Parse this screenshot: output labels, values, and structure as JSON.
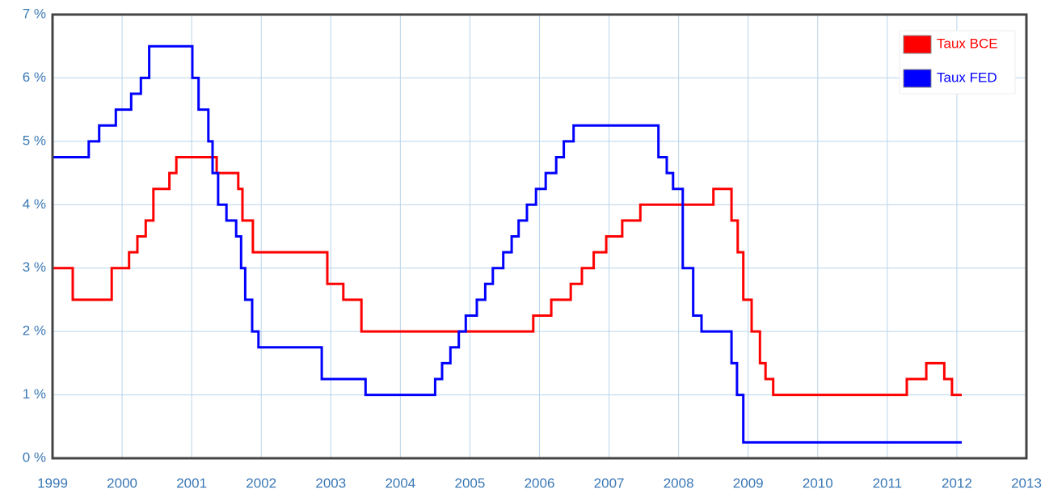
{
  "chart_data": {
    "type": "line",
    "step": true,
    "legend": "top-right",
    "grid": true,
    "xlim": [
      1999,
      2013
    ],
    "xticks": [
      1999,
      2000,
      2001,
      2002,
      2003,
      2004,
      2005,
      2006,
      2007,
      2008,
      2009,
      2010,
      2011,
      2012,
      2013
    ],
    "ylim": [
      0,
      7
    ],
    "yticks": [
      {
        "value": 0,
        "label": "0 %"
      },
      {
        "value": 1,
        "label": "1 %"
      },
      {
        "value": 2,
        "label": "2 %"
      },
      {
        "value": 3,
        "label": "3 %"
      },
      {
        "value": 4,
        "label": "4 %"
      },
      {
        "value": 5,
        "label": "5 %"
      },
      {
        "value": 6,
        "label": "6 %"
      },
      {
        "value": 7,
        "label": "7 %"
      }
    ],
    "series": [
      {
        "name": "Taux BCE",
        "color": "#ff0000",
        "x": [
          1999,
          1999.29,
          1999.29,
          1999.85,
          1999.85,
          2000.1,
          2000.1,
          2000.22,
          2000.22,
          2000.34,
          2000.34,
          2000.45,
          2000.45,
          2000.68,
          2000.68,
          2000.78,
          2000.78,
          2001.36,
          2001.36,
          2001.67,
          2001.67,
          2001.73,
          2001.73,
          2001.88,
          2001.88,
          2002.95,
          2002.95,
          2003.18,
          2003.18,
          2003.44,
          2003.44,
          2005.91,
          2005.91,
          2006.17,
          2006.17,
          2006.45,
          2006.45,
          2006.61,
          2006.61,
          2006.78,
          2006.78,
          2006.96,
          2006.96,
          2007.19,
          2007.19,
          2007.45,
          2007.45,
          2008.5,
          2008.5,
          2008.76,
          2008.76,
          2008.85,
          2008.85,
          2008.93,
          2008.93,
          2009.05,
          2009.05,
          2009.17,
          2009.17,
          2009.25,
          2009.25,
          2009.36,
          2009.36,
          2011.28,
          2011.28,
          2011.56,
          2011.56,
          2011.82,
          2011.82,
          2011.93,
          2011.93,
          2012.07
        ],
        "values": [
          3,
          3,
          2.5,
          2.5,
          3,
          3,
          3.25,
          3.25,
          3.5,
          3.5,
          3.75,
          3.75,
          4.25,
          4.25,
          4.5,
          4.5,
          4.75,
          4.75,
          4.5,
          4.5,
          4.25,
          4.25,
          3.75,
          3.75,
          3.25,
          3.25,
          2.75,
          2.75,
          2.5,
          2.5,
          2,
          2,
          2.25,
          2.25,
          2.5,
          2.5,
          2.75,
          2.75,
          3,
          3,
          3.25,
          3.25,
          3.5,
          3.5,
          3.75,
          3.75,
          4,
          4,
          4.25,
          4.25,
          3.75,
          3.75,
          3.25,
          3.25,
          2.5,
          2.5,
          2,
          2,
          1.5,
          1.5,
          1.25,
          1.25,
          1,
          1,
          1.25,
          1.25,
          1.5,
          1.5,
          1.25,
          1.25,
          1,
          1
        ]
      },
      {
        "name": "Taux FED",
        "color": "#0000ff",
        "x": [
          1999,
          1999.52,
          1999.52,
          1999.67,
          1999.67,
          1999.91,
          1999.91,
          2000.13,
          2000.13,
          2000.27,
          2000.27,
          2000.39,
          2000.39,
          2001.01,
          2001.01,
          2001.1,
          2001.1,
          2001.24,
          2001.24,
          2001.3,
          2001.3,
          2001.38,
          2001.38,
          2001.5,
          2001.5,
          2001.64,
          2001.64,
          2001.71,
          2001.71,
          2001.77,
          2001.77,
          2001.87,
          2001.87,
          2001.96,
          2001.96,
          2002.87,
          2002.87,
          2003.5,
          2003.5,
          2004.5,
          2004.5,
          2004.6,
          2004.6,
          2004.72,
          2004.72,
          2004.84,
          2004.84,
          2004.94,
          2004.94,
          2005.1,
          2005.1,
          2005.22,
          2005.22,
          2005.33,
          2005.33,
          2005.48,
          2005.48,
          2005.6,
          2005.6,
          2005.7,
          2005.7,
          2005.82,
          2005.82,
          2005.95,
          2005.95,
          2006.09,
          2006.09,
          2006.24,
          2006.24,
          2006.35,
          2006.35,
          2006.49,
          2006.49,
          2007.71,
          2007.71,
          2007.83,
          2007.83,
          2007.92,
          2007.92,
          2008.06,
          2008.06,
          2008.21,
          2008.21,
          2008.33,
          2008.33,
          2008.76,
          2008.76,
          2008.84,
          2008.84,
          2008.93,
          2008.93,
          2012.07
        ],
        "values": [
          4.75,
          4.75,
          5,
          5,
          5.25,
          5.25,
          5.5,
          5.5,
          5.75,
          5.75,
          6,
          6,
          6.5,
          6.5,
          6,
          6,
          5.5,
          5.5,
          5,
          5,
          4.5,
          4.5,
          4,
          4,
          3.75,
          3.75,
          3.5,
          3.5,
          3,
          3,
          2.5,
          2.5,
          2,
          2,
          1.75,
          1.75,
          1.25,
          1.25,
          1,
          1,
          1.25,
          1.25,
          1.5,
          1.5,
          1.75,
          1.75,
          2,
          2,
          2.25,
          2.25,
          2.5,
          2.5,
          2.75,
          2.75,
          3,
          3,
          3.25,
          3.25,
          3.5,
          3.5,
          3.75,
          3.75,
          4,
          4,
          4.25,
          4.25,
          4.5,
          4.5,
          4.75,
          4.75,
          5,
          5,
          5.25,
          5.25,
          4.75,
          4.75,
          4.5,
          4.5,
          4.25,
          4.25,
          3,
          3,
          2.25,
          2.25,
          2,
          2,
          1.5,
          1.5,
          1,
          1,
          0.25,
          0.25
        ]
      }
    ]
  }
}
